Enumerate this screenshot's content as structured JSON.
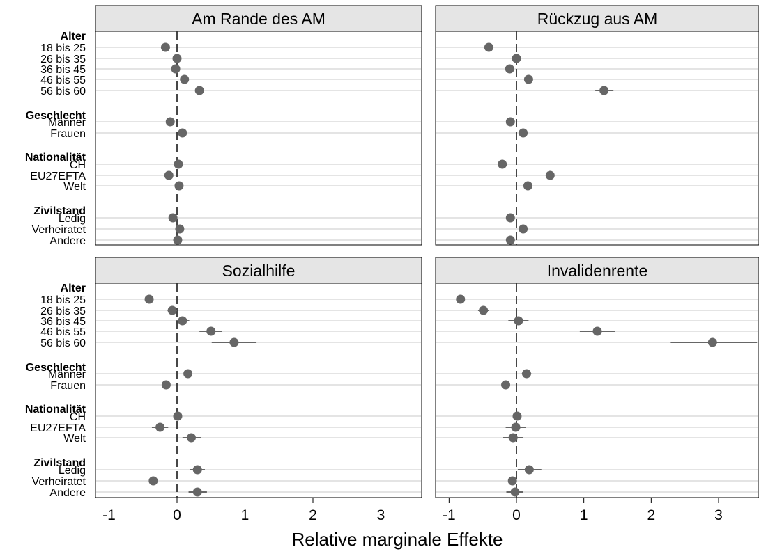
{
  "chart_data": {
    "type": "scatter",
    "xlabel": "Relative marginale Effekte",
    "xlim": [
      -1.2,
      3.6
    ],
    "xticks": [
      -1,
      0,
      1,
      2,
      3
    ],
    "xtick_labels": [
      "-1",
      "0",
      "1",
      "2",
      "3"
    ],
    "reference_line": 0,
    "rows": [
      {
        "group": "Alter",
        "labels": [
          "18 bis 25",
          "26 bis 35",
          "36 bis 45",
          "46 bis 55",
          "56 bis 60"
        ]
      },
      {
        "group": "Geschlecht",
        "labels": [
          "Männer",
          "Frauen"
        ]
      },
      {
        "group": "Nationalität",
        "labels": [
          "CH",
          "EU27EFTA",
          "Welt"
        ]
      },
      {
        "group": "Zivilstand",
        "labels": [
          "Ledig",
          "Verheiratet",
          "Andere"
        ]
      }
    ],
    "panels": [
      {
        "title": "Am Rande des AM",
        "points": [
          {
            "est": -0.17,
            "lo": -0.21,
            "hi": -0.13
          },
          {
            "est": 0.0,
            "lo": -0.02,
            "hi": 0.02
          },
          {
            "est": -0.02,
            "lo": -0.04,
            "hi": 0.0
          },
          {
            "est": 0.11,
            "lo": 0.08,
            "hi": 0.14
          },
          {
            "est": 0.33,
            "lo": 0.29,
            "hi": 0.37
          },
          {
            "est": -0.1,
            "lo": -0.12,
            "hi": -0.08
          },
          {
            "est": 0.08,
            "lo": 0.06,
            "hi": 0.1
          },
          {
            "est": 0.02,
            "lo": 0.0,
            "hi": 0.04
          },
          {
            "est": -0.12,
            "lo": -0.15,
            "hi": -0.09
          },
          {
            "est": 0.03,
            "lo": 0.0,
            "hi": 0.06
          },
          {
            "est": -0.06,
            "lo": -0.08,
            "hi": -0.04
          },
          {
            "est": 0.04,
            "lo": 0.02,
            "hi": 0.06
          },
          {
            "est": 0.01,
            "lo": -0.02,
            "hi": 0.04
          }
        ]
      },
      {
        "title": "Rückzug aus AM",
        "points": [
          {
            "est": -0.41,
            "lo": -0.45,
            "hi": -0.37
          },
          {
            "est": 0.0,
            "lo": -0.03,
            "hi": 0.03
          },
          {
            "est": -0.1,
            "lo": -0.13,
            "hi": -0.07
          },
          {
            "est": 0.18,
            "lo": 0.15,
            "hi": 0.21
          },
          {
            "est": 1.3,
            "lo": 1.17,
            "hi": 1.44
          },
          {
            "est": -0.09,
            "lo": -0.11,
            "hi": -0.07
          },
          {
            "est": 0.1,
            "lo": 0.08,
            "hi": 0.12
          },
          {
            "est": -0.21,
            "lo": -0.23,
            "hi": -0.19
          },
          {
            "est": 0.5,
            "lo": 0.47,
            "hi": 0.53
          },
          {
            "est": 0.17,
            "lo": 0.14,
            "hi": 0.2
          },
          {
            "est": -0.09,
            "lo": -0.11,
            "hi": -0.07
          },
          {
            "est": 0.1,
            "lo": 0.08,
            "hi": 0.12
          },
          {
            "est": -0.09,
            "lo": -0.12,
            "hi": -0.06
          }
        ]
      },
      {
        "title": "Sozialhilfe",
        "points": [
          {
            "est": -0.41,
            "lo": -0.47,
            "hi": -0.35
          },
          {
            "est": -0.07,
            "lo": -0.14,
            "hi": 0.0
          },
          {
            "est": 0.08,
            "lo": -0.02,
            "hi": 0.18
          },
          {
            "est": 0.5,
            "lo": 0.33,
            "hi": 0.66
          },
          {
            "est": 0.84,
            "lo": 0.51,
            "hi": 1.17
          },
          {
            "est": 0.16,
            "lo": 0.12,
            "hi": 0.2
          },
          {
            "est": -0.16,
            "lo": -0.2,
            "hi": -0.12
          },
          {
            "est": 0.01,
            "lo": -0.04,
            "hi": 0.06
          },
          {
            "est": -0.25,
            "lo": -0.37,
            "hi": -0.13
          },
          {
            "est": 0.21,
            "lo": 0.08,
            "hi": 0.35
          },
          {
            "est": 0.3,
            "lo": 0.19,
            "hi": 0.41
          },
          {
            "est": -0.35,
            "lo": -0.39,
            "hi": -0.31
          },
          {
            "est": 0.3,
            "lo": 0.17,
            "hi": 0.44
          }
        ]
      },
      {
        "title": "Invalidenrente",
        "points": [
          {
            "est": -0.83,
            "lo": -0.88,
            "hi": -0.78
          },
          {
            "est": -0.49,
            "lo": -0.57,
            "hi": -0.41
          },
          {
            "est": 0.03,
            "lo": -0.12,
            "hi": 0.18
          },
          {
            "est": 1.2,
            "lo": 0.94,
            "hi": 1.46
          },
          {
            "est": 2.91,
            "lo": 2.29,
            "hi": 3.57
          },
          {
            "est": 0.15,
            "lo": 0.08,
            "hi": 0.22
          },
          {
            "est": -0.16,
            "lo": -0.22,
            "hi": -0.1
          },
          {
            "est": 0.01,
            "lo": -0.04,
            "hi": 0.06
          },
          {
            "est": -0.01,
            "lo": -0.16,
            "hi": 0.14
          },
          {
            "est": -0.05,
            "lo": -0.2,
            "hi": 0.1
          },
          {
            "est": 0.19,
            "lo": 0.02,
            "hi": 0.37
          },
          {
            "est": -0.06,
            "lo": -0.1,
            "hi": -0.02
          },
          {
            "est": -0.02,
            "lo": -0.15,
            "hi": 0.1
          }
        ]
      }
    ]
  },
  "colors": {
    "marker": "#666666",
    "ci": "#666666",
    "gridline": "#dcdcdc",
    "header_fill": "#e5e5e5",
    "refline": "#333333"
  }
}
